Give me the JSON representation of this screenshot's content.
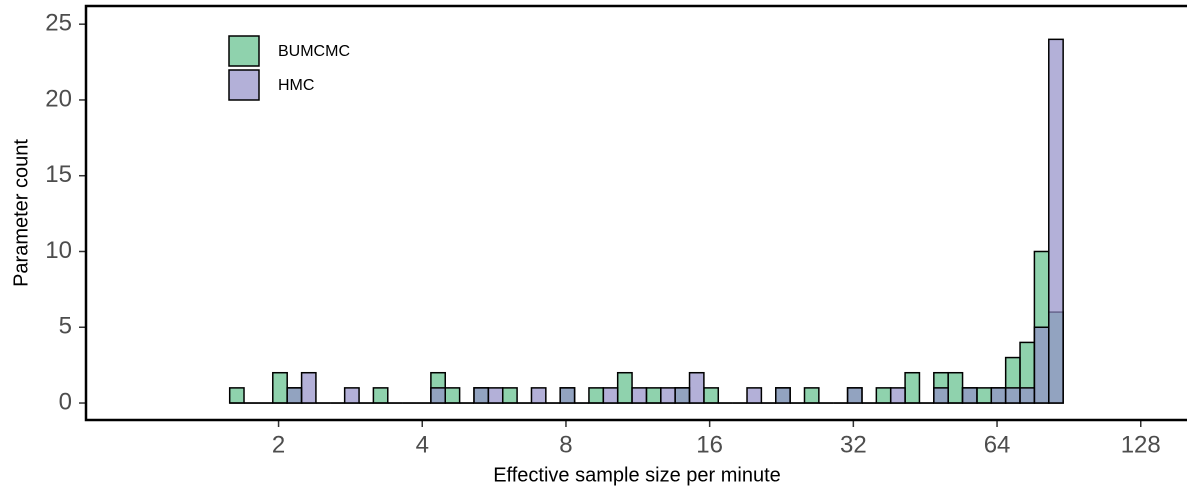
{
  "chart_data": {
    "type": "histogram",
    "xlabel": "Effective sample size per minute",
    "ylabel": "Parameter count",
    "xscale": "log2",
    "xlim": [
      0.79,
      160
    ],
    "xticks": [
      2,
      4,
      8,
      16,
      32,
      64,
      128
    ],
    "ylim": [
      -1.12,
      26.2
    ],
    "yticks": [
      0,
      5,
      10,
      15,
      20,
      25
    ],
    "legend": "top-left",
    "bins": [
      1.58,
      1.693,
      1.815,
      1.945,
      2.085,
      2.235,
      2.395,
      2.567,
      2.751,
      2.949,
      3.16,
      3.387,
      3.63,
      3.891,
      4.17,
      4.469,
      4.79,
      5.134,
      5.502,
      5.897,
      6.32,
      6.774,
      7.26,
      7.781,
      8.34,
      8.938,
      9.58,
      10.267,
      11.004,
      11.794,
      12.641,
      13.548,
      14.52,
      15.562,
      16.68,
      17.877,
      19.16,
      20.535,
      22.009,
      23.588,
      25.281,
      27.095,
      29.04,
      31.124,
      33.359,
      35.753,
      38.319,
      41.07,
      44.017,
      47.177,
      50.563,
      54.191,
      58.08,
      62.248,
      66.718,
      71.507,
      76.639,
      82.139,
      88.035
    ],
    "series": [
      {
        "name": "BUMCMC",
        "color": "#5fbf8a",
        "values": [
          1,
          0,
          0,
          2,
          1,
          0,
          0,
          0,
          0,
          0,
          1,
          0,
          0,
          0,
          2,
          1,
          0,
          1,
          0,
          1,
          0,
          0,
          0,
          1,
          0,
          1,
          0,
          2,
          0,
          1,
          0,
          1,
          0,
          1,
          0,
          0,
          0,
          0,
          1,
          0,
          1,
          0,
          0,
          1,
          0,
          1,
          0,
          2,
          0,
          2,
          2,
          1,
          1,
          1,
          3,
          4,
          10,
          6
        ]
      },
      {
        "name": "HMC",
        "color": "#938fc7",
        "values": [
          0,
          0,
          0,
          0,
          1,
          2,
          0,
          0,
          1,
          0,
          0,
          0,
          0,
          0,
          1,
          0,
          0,
          1,
          1,
          0,
          0,
          1,
          0,
          1,
          0,
          0,
          1,
          0,
          1,
          0,
          1,
          1,
          2,
          0,
          0,
          0,
          1,
          0,
          1,
          0,
          0,
          0,
          0,
          1,
          0,
          0,
          1,
          0,
          0,
          1,
          0,
          1,
          0,
          1,
          1,
          1,
          5,
          24
        ]
      }
    ]
  }
}
